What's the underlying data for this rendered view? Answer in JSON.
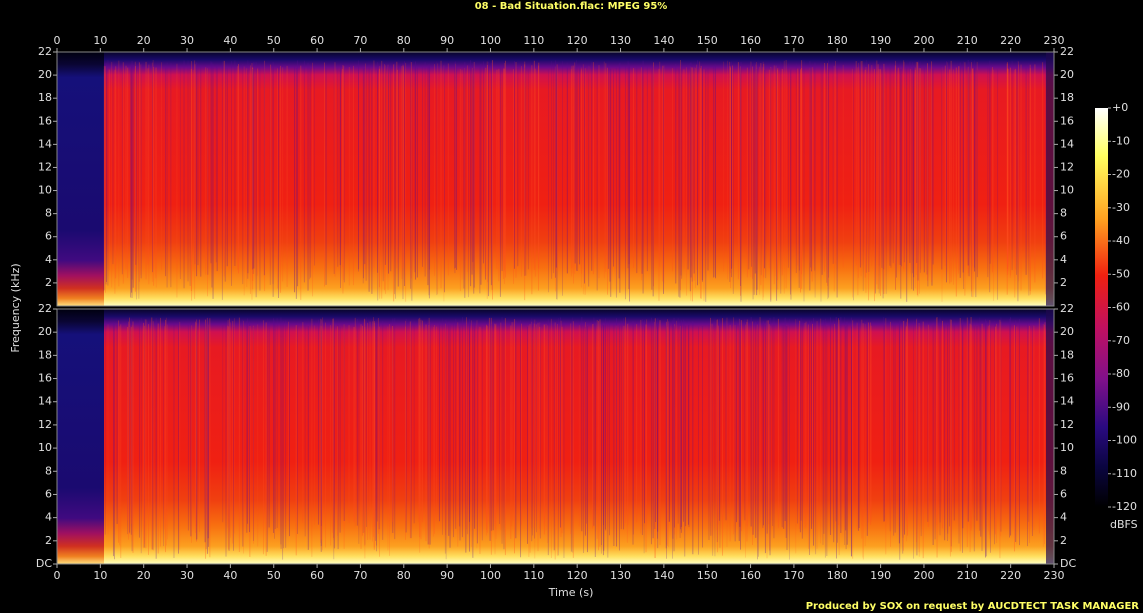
{
  "chart_data": {
    "type": "spectrogram",
    "title": "08 - Bad Situation.flac: MPEG 95%",
    "xlabel": "Time (s)",
    "ylabel": "Frequency (kHz)",
    "xlim": [
      0,
      230
    ],
    "xticks": [
      0,
      10,
      20,
      30,
      40,
      50,
      60,
      70,
      80,
      90,
      100,
      110,
      120,
      130,
      140,
      150,
      160,
      170,
      180,
      190,
      200,
      210,
      220,
      230
    ],
    "panels": [
      {
        "ylim": [
          0,
          22
        ],
        "yticks": [
          2,
          4,
          6,
          8,
          10,
          12,
          14,
          16,
          18,
          20,
          22
        ]
      },
      {
        "ylim": [
          0,
          22
        ],
        "yticks": [
          {
            "value": 0,
            "label": "DC"
          },
          2,
          4,
          6,
          8,
          10,
          12,
          14,
          16,
          18,
          20,
          22
        ]
      }
    ],
    "colorbar": {
      "label": "dBFS",
      "zlim": [
        -120,
        0
      ],
      "zticks": [
        {
          "value": 0,
          "label": "+0"
        },
        -10,
        -20,
        -30,
        -40,
        -50,
        -60,
        -70,
        -80,
        -90,
        -100,
        -110,
        -120
      ]
    },
    "footer": "Produced by SOX on request by AUCDTECT TASK MANAGER"
  }
}
